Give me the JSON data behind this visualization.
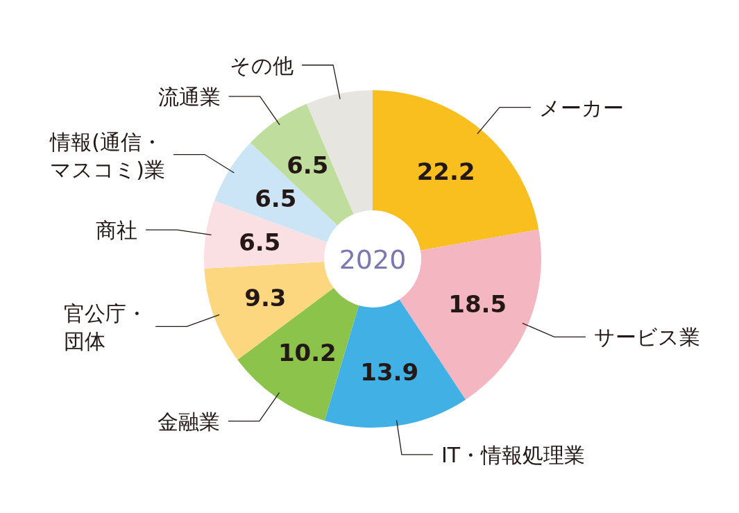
{
  "chart_data": {
    "type": "donut",
    "title": "2020",
    "categories": [
      "メーカー",
      "サービス業",
      "IT・情報処理業",
      "金融業",
      "官公庁・団体",
      "商社",
      "情報(通信・マスコミ)業",
      "流通業",
      "その他"
    ],
    "values": [
      22.2,
      18.5,
      13.9,
      10.2,
      9.3,
      6.5,
      6.5,
      6.5,
      6.4
    ],
    "value_labels": [
      "22.2",
      "18.5",
      "13.9",
      "10.2",
      "9.3",
      "6.5",
      "6.5",
      "6.5",
      null
    ],
    "colors": [
      "#f8bf1e",
      "#f4b6c0",
      "#41b1e5",
      "#8cc34b",
      "#fdd780",
      "#fbe0e3",
      "#cce5f6",
      "#bfdd9c",
      "#e6e5e0"
    ]
  }
}
